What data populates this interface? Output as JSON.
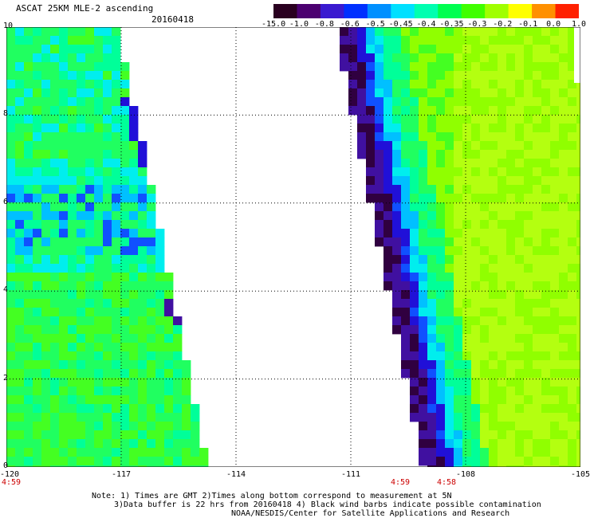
{
  "header": {
    "title": "ASCAT 25KM MLE-2 ascending",
    "date": "20160418"
  },
  "colorbar": {
    "labels": [
      "-15.0",
      "-1.0",
      "-0.8",
      "-0.6",
      "-0.5",
      "-0.45",
      "-0.4",
      "-0.35",
      "-0.3",
      "-0.2",
      "-0.1",
      "0.0",
      "1.0"
    ],
    "colors": [
      "#2a0020",
      "#4b0070",
      "#3a1ad0",
      "#0030ff",
      "#0090ff",
      "#00e0ff",
      "#00ffb0",
      "#00ff50",
      "#40ff00",
      "#a0ff00",
      "#ffff00",
      "#ff9000",
      "#ff2000"
    ]
  },
  "map": {
    "lon_range": [
      -120,
      -105
    ],
    "lat_range": [
      0,
      10
    ],
    "lon_ticks": [
      "-120",
      "-117",
      "-114",
      "-111",
      "-108",
      "-105"
    ],
    "lat_ticks": [
      "10",
      "8",
      "6",
      "4",
      "2",
      "0"
    ],
    "grid": true
  },
  "times": {
    "left": "4:59",
    "mid1": "4:59",
    "mid2": "4:58"
  },
  "notes": {
    "line1": "Note: 1) Times are GMT 2)Times along bottom correspond to measurement at 5N",
    "line2": "3)Data buffer is 22 hrs from 20160418 4) Black wind barbs indicate possible contamination",
    "line3": "NOAA/NESDIS/Center for Satellite Applications and Research"
  }
}
